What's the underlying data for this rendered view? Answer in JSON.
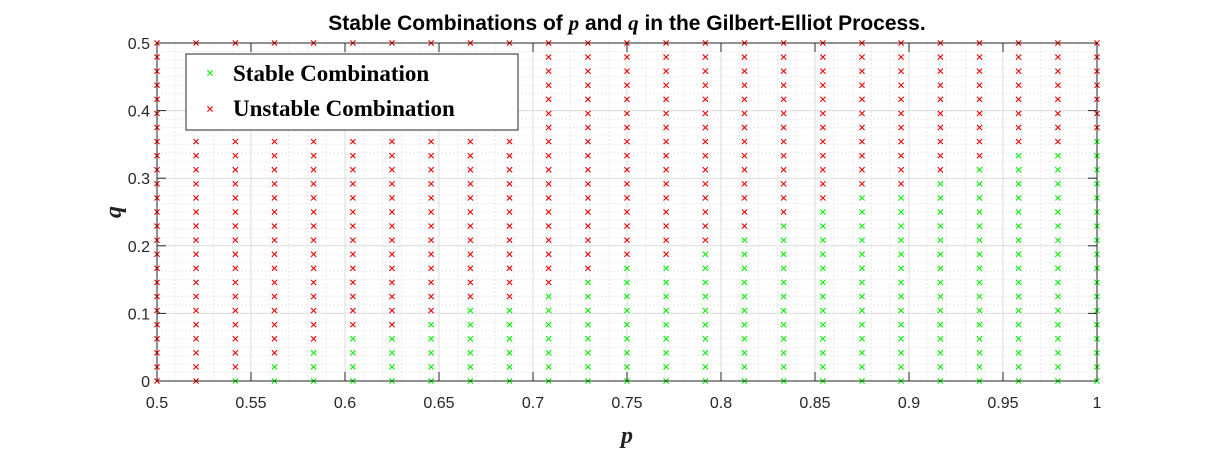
{
  "chart_data": {
    "type": "scatter",
    "title_parts": [
      "Stable Combinations of ",
      "p",
      " and ",
      "q",
      " in the Gilbert-Elliot Process."
    ],
    "xlabel": "p",
    "ylabel": "q",
    "xlim": [
      0.5,
      1
    ],
    "ylim": [
      0,
      0.5
    ],
    "x_ticks": [
      "0.5",
      "0.55",
      "0.6",
      "0.65",
      "0.7",
      "0.75",
      "0.8",
      "0.85",
      "0.9",
      "0.95",
      "1"
    ],
    "y_ticks": [
      "0",
      "0.1",
      "0.2",
      "0.3",
      "0.4",
      "0.5"
    ],
    "grid": true,
    "minor_grid": true,
    "legend_position": "top-left",
    "marker": "x",
    "p_values": [
      0.5,
      0.5208,
      0.5417,
      0.5625,
      0.5833,
      0.6042,
      0.625,
      0.6458,
      0.6667,
      0.6875,
      0.7083,
      0.7292,
      0.75,
      0.7708,
      0.7917,
      0.8125,
      0.8333,
      0.8542,
      0.875,
      0.8958,
      0.9167,
      0.9375,
      0.9583,
      0.9792,
      1.0
    ],
    "q_values": [
      0,
      0.0208,
      0.0417,
      0.0625,
      0.0833,
      0.1042,
      0.125,
      0.1458,
      0.1667,
      0.1875,
      0.2083,
      0.2292,
      0.25,
      0.2708,
      0.2917,
      0.3125,
      0.3333,
      0.3542,
      0.375,
      0.3958,
      0.4167,
      0.4375,
      0.4583,
      0.4792,
      0.5
    ],
    "stable_max_q": [
      -1,
      -1,
      0,
      0.0208,
      0.0417,
      0.0625,
      0.0625,
      0.0833,
      0.1042,
      0.1042,
      0.125,
      0.1458,
      0.1667,
      0.1667,
      0.1875,
      0.2083,
      0.2292,
      0.25,
      0.2708,
      0.2708,
      0.2917,
      0.3125,
      0.3333,
      0.3333,
      0.3542
    ],
    "series": [
      {
        "name": "Stable Combination",
        "color": "#00ee00"
      },
      {
        "name": "Unstable Combination",
        "color": "#ee0000"
      }
    ]
  }
}
